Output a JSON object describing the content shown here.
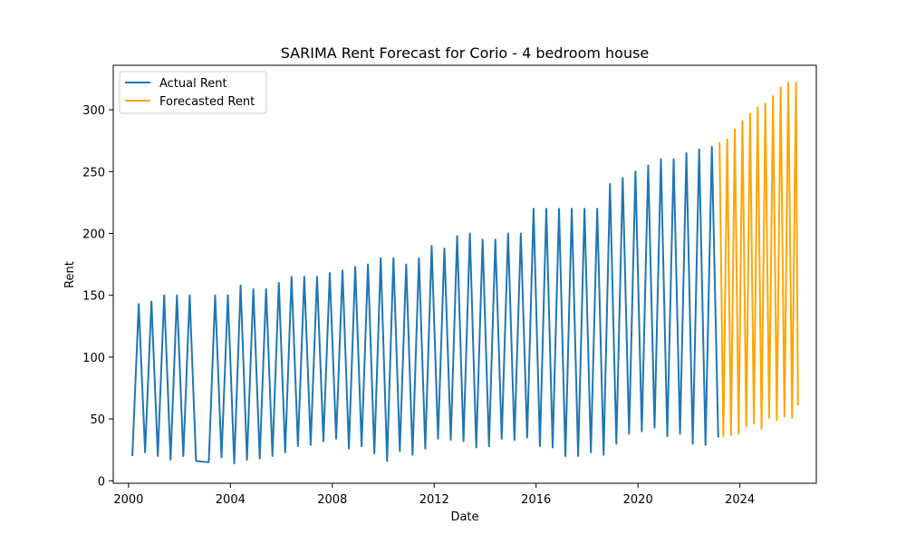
{
  "chart_data": {
    "type": "line",
    "title": "SARIMA Rent Forecast for Corio - 4 bedroom house",
    "xlabel": "Date",
    "ylabel": "Rent",
    "xlim": [
      1999.4,
      2027.0
    ],
    "ylim": [
      -2,
      336
    ],
    "x_ticks": [
      2000,
      2004,
      2008,
      2012,
      2016,
      2020,
      2024
    ],
    "x_tick_labels": [
      "2000",
      "2004",
      "2008",
      "2012",
      "2016",
      "2020",
      "2024"
    ],
    "y_ticks": [
      0,
      50,
      100,
      150,
      200,
      250,
      300
    ],
    "y_tick_labels": [
      "0",
      "50",
      "100",
      "150",
      "200",
      "250",
      "300"
    ],
    "grid": false,
    "legend_position": "top-left",
    "series": [
      {
        "name": "Actual Rent",
        "color": "#1f77b4",
        "x": [
          2000.15,
          2000.4,
          2000.65,
          2000.9,
          2001.15,
          2001.4,
          2001.65,
          2001.9,
          2002.15,
          2002.4,
          2002.65,
          2003.15,
          2003.4,
          2003.65,
          2003.9,
          2004.15,
          2004.4,
          2004.65,
          2004.9,
          2005.15,
          2005.4,
          2005.65,
          2005.9,
          2006.15,
          2006.4,
          2006.65,
          2006.9,
          2007.15,
          2007.4,
          2007.65,
          2007.9,
          2008.15,
          2008.4,
          2008.65,
          2008.9,
          2009.15,
          2009.4,
          2009.65,
          2009.9,
          2010.15,
          2010.4,
          2010.65,
          2010.9,
          2011.15,
          2011.4,
          2011.65,
          2011.9,
          2012.15,
          2012.4,
          2012.65,
          2012.9,
          2013.15,
          2013.4,
          2013.65,
          2013.9,
          2014.15,
          2014.4,
          2014.65,
          2014.9,
          2015.15,
          2015.4,
          2015.65,
          2015.9,
          2016.15,
          2016.4,
          2016.65,
          2016.9,
          2017.15,
          2017.4,
          2017.65,
          2017.9,
          2018.15,
          2018.4,
          2018.65,
          2018.9,
          2019.15,
          2019.4,
          2019.65,
          2019.9,
          2020.15,
          2020.4,
          2020.65,
          2020.9,
          2021.15,
          2021.4,
          2021.65,
          2021.9,
          2022.15,
          2022.4,
          2022.65,
          2022.9,
          2023.15
        ],
        "y": [
          20,
          143,
          23,
          145,
          20,
          150,
          17,
          150,
          20,
          150,
          16,
          15,
          150,
          19,
          150,
          14,
          158,
          17,
          155,
          18,
          155,
          20,
          160,
          23,
          165,
          28,
          165,
          29,
          165,
          32,
          168,
          34,
          170,
          26,
          173,
          28,
          175,
          22,
          180,
          16,
          180,
          24,
          175,
          21,
          180,
          26,
          190,
          34,
          188,
          33,
          198,
          32,
          200,
          27,
          195,
          28,
          195,
          34,
          200,
          33,
          200,
          35,
          220,
          28,
          220,
          27,
          220,
          20,
          220,
          20,
          220,
          23,
          220,
          21,
          240,
          30,
          245,
          38,
          250,
          40,
          255,
          43,
          260,
          36,
          260,
          38,
          265,
          30,
          268,
          29,
          270,
          35
        ]
      },
      {
        "name": "Forecasted Rent",
        "color": "#ffa500",
        "x": [
          2023.2,
          2023.35,
          2023.5,
          2023.65,
          2023.8,
          2023.95,
          2024.1,
          2024.25,
          2024.4,
          2024.55,
          2024.7,
          2024.85,
          2025.0,
          2025.15,
          2025.3,
          2025.45,
          2025.6,
          2025.75,
          2025.9,
          2026.05,
          2026.2,
          2026.28
        ],
        "y": [
          274,
          36,
          276,
          37,
          284,
          38,
          291,
          44,
          297,
          46,
          302,
          42,
          305,
          51,
          311,
          49,
          318,
          52,
          322,
          51,
          322,
          61
        ]
      }
    ]
  }
}
